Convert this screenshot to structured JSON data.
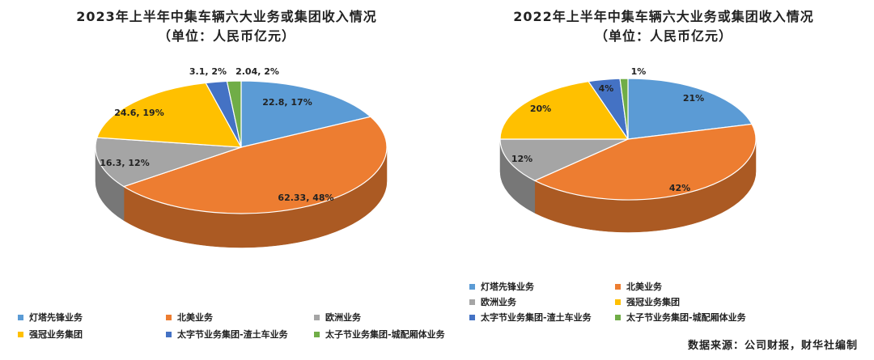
{
  "charts": [
    {
      "title_line1": "2023年上半年中集车辆六大业务或集团收入情况",
      "title_line2": "（单位：人民币亿元）",
      "labels": [
        "22.8, 17%",
        "62.33, 48%",
        "16.3, 12%",
        "24.6, 19%",
        "3.1, 2%",
        "2.04, 2%"
      ]
    },
    {
      "title_line1": "2022年上半年中集车辆六大业务或集团收入情况",
      "title_line2": "（单位：人民币亿元）",
      "labels": [
        "21%",
        "42%",
        "12%",
        "20%",
        "4%",
        "1%"
      ]
    }
  ],
  "legend": [
    {
      "label": "灯塔先锋业务",
      "color": "#5B9BD5"
    },
    {
      "label": "北美业务",
      "color": "#ED7D31"
    },
    {
      "label": "欧洲业务",
      "color": "#A5A5A5"
    },
    {
      "label": "强冠业务集团",
      "color": "#FFC000"
    },
    {
      "label": "太字节业务集团-渣土车业务",
      "color": "#4472C4"
    },
    {
      "label": "太子节业务集团-城配厢体业务",
      "color": "#70AD47"
    }
  ],
  "source": "数据来源：公司财报，财华社编制",
  "chart_data": [
    {
      "type": "pie",
      "title": "2023年上半年中集车辆六大业务或集团收入情况（单位：人民币亿元）",
      "categories": [
        "灯塔先锋业务",
        "北美业务",
        "欧洲业务",
        "强冠业务集团",
        "太字节业务集团-渣土车业务",
        "太子节业务集团-城配厢体业务"
      ],
      "values": [
        22.8,
        62.33,
        16.3,
        24.6,
        3.1,
        2.04
      ],
      "percentages": [
        17,
        48,
        12,
        19,
        2,
        2
      ],
      "colors": [
        "#5B9BD5",
        "#ED7D31",
        "#A5A5A5",
        "#FFC000",
        "#4472C4",
        "#70AD47"
      ],
      "style": "3d",
      "legend": "bottom"
    },
    {
      "type": "pie",
      "title": "2022年上半年中集车辆六大业务或集团收入情况（单位：人民币亿元）",
      "categories": [
        "灯塔先锋业务",
        "北美业务",
        "欧洲业务",
        "强冠业务集团",
        "太字节业务集团-渣土车业务",
        "太子节业务集团-城配厢体业务"
      ],
      "values": [
        21,
        42,
        12,
        20,
        4,
        1
      ],
      "percentages": [
        21,
        42,
        12,
        20,
        4,
        1
      ],
      "colors": [
        "#5B9BD5",
        "#ED7D31",
        "#A5A5A5",
        "#FFC000",
        "#4472C4",
        "#70AD47"
      ],
      "style": "3d",
      "legend": "bottom"
    }
  ]
}
